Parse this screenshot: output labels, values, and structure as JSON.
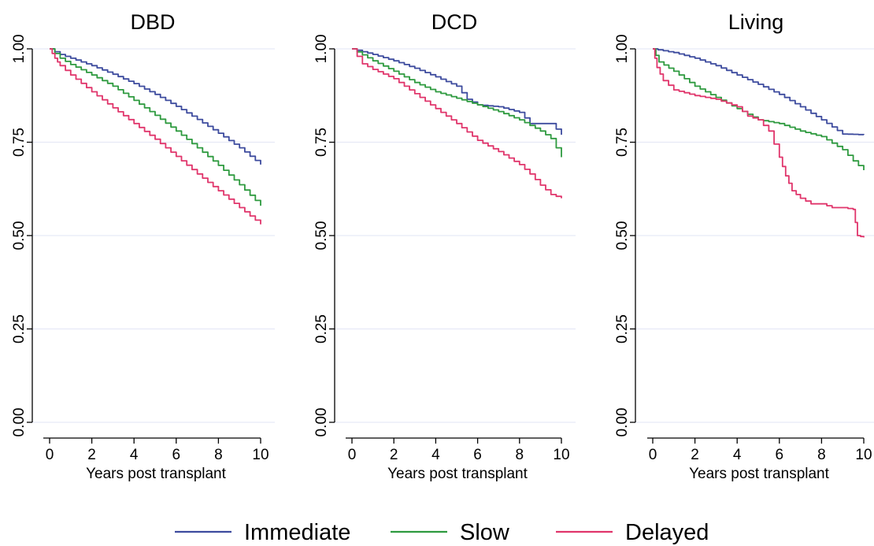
{
  "chart_data": [
    {
      "type": "line",
      "title": "DBD",
      "xlabel": "Years post transplant",
      "ylabel": "",
      "xlim": [
        0,
        10
      ],
      "ylim": [
        0,
        1
      ],
      "xticks": [
        "0",
        "2",
        "4",
        "6",
        "8",
        "10"
      ],
      "yticks": [
        "0.00",
        "0.25",
        "0.50",
        "0.75",
        "1.00"
      ],
      "grid": true,
      "series": [
        {
          "name": "Immediate",
          "color": "#3d4b9e",
          "x": [
            0,
            0.5,
            1,
            2,
            3,
            4,
            5,
            6,
            7,
            8,
            9,
            10
          ],
          "values": [
            1.0,
            0.985,
            0.975,
            0.955,
            0.932,
            0.907,
            0.878,
            0.846,
            0.811,
            0.774,
            0.735,
            0.69
          ]
        },
        {
          "name": "Slow",
          "color": "#2e9a3f",
          "x": [
            0,
            0.5,
            1,
            2,
            3,
            4,
            5,
            6,
            7,
            8,
            9,
            10
          ],
          "values": [
            1.0,
            0.975,
            0.958,
            0.93,
            0.9,
            0.862,
            0.822,
            0.78,
            0.735,
            0.688,
            0.636,
            0.58
          ]
        },
        {
          "name": "Delayed",
          "color": "#e0356b",
          "x": [
            0,
            0.25,
            0.5,
            1,
            2,
            3,
            4,
            5,
            6,
            7,
            8,
            9,
            10
          ],
          "values": [
            1.0,
            0.975,
            0.955,
            0.93,
            0.885,
            0.842,
            0.8,
            0.758,
            0.712,
            0.665,
            0.62,
            0.575,
            0.53
          ]
        }
      ]
    },
    {
      "type": "line",
      "title": "DCD",
      "xlabel": "Years post transplant",
      "ylabel": "",
      "xlim": [
        0,
        10
      ],
      "ylim": [
        0,
        1
      ],
      "xticks": [
        "0",
        "2",
        "4",
        "6",
        "8",
        "10"
      ],
      "yticks": [
        "0.00",
        "0.25",
        "0.50",
        "0.75",
        "1.00"
      ],
      "grid": true,
      "series": [
        {
          "name": "Immediate",
          "color": "#3d4b9e",
          "x": [
            0,
            1,
            2,
            3,
            4,
            5,
            5.5,
            6,
            7,
            8,
            8.5,
            9,
            9.5,
            10
          ],
          "values": [
            1.0,
            0.985,
            0.968,
            0.948,
            0.925,
            0.9,
            0.865,
            0.85,
            0.845,
            0.83,
            0.8,
            0.8,
            0.8,
            0.77
          ]
        },
        {
          "name": "Slow",
          "color": "#2e9a3f",
          "x": [
            0,
            1,
            2,
            3,
            4,
            5,
            6,
            7,
            8,
            9,
            9.5,
            10
          ],
          "values": [
            1.0,
            0.968,
            0.94,
            0.91,
            0.885,
            0.868,
            0.85,
            0.832,
            0.81,
            0.78,
            0.76,
            0.71
          ]
        },
        {
          "name": "Delayed",
          "color": "#e0356b",
          "x": [
            0,
            0.5,
            1,
            2,
            3,
            4,
            5,
            6,
            7,
            8,
            8.5,
            9,
            9.5,
            10
          ],
          "values": [
            1.0,
            0.96,
            0.945,
            0.92,
            0.88,
            0.84,
            0.8,
            0.755,
            0.725,
            0.69,
            0.665,
            0.635,
            0.61,
            0.6
          ]
        }
      ]
    },
    {
      "type": "line",
      "title": "Living",
      "xlabel": "Years post transplant",
      "ylabel": "",
      "xlim": [
        0,
        10
      ],
      "ylim": [
        0,
        1
      ],
      "xticks": [
        "0",
        "2",
        "4",
        "6",
        "8",
        "10"
      ],
      "yticks": [
        "0.00",
        "0.25",
        "0.50",
        "0.75",
        "1.00"
      ],
      "grid": true,
      "series": [
        {
          "name": "Immediate",
          "color": "#3d4b9e",
          "x": [
            0,
            1,
            2,
            3,
            4,
            5,
            6,
            7,
            8,
            9,
            10
          ],
          "values": [
            1.0,
            0.99,
            0.975,
            0.955,
            0.93,
            0.905,
            0.878,
            0.845,
            0.81,
            0.772,
            0.77
          ]
        },
        {
          "name": "Slow",
          "color": "#2e9a3f",
          "x": [
            0,
            0.3,
            1,
            2,
            3,
            4,
            5,
            6,
            7,
            8,
            9,
            9.5,
            10
          ],
          "values": [
            1.0,
            0.965,
            0.94,
            0.9,
            0.87,
            0.84,
            0.81,
            0.8,
            0.78,
            0.765,
            0.73,
            0.7,
            0.675
          ]
        },
        {
          "name": "Delayed",
          "color": "#e0356b",
          "x": [
            0,
            0.2,
            0.5,
            1,
            2,
            3,
            4,
            4.5,
            5,
            5.5,
            6,
            6.3,
            6.6,
            7,
            7.5,
            8,
            8.5,
            9,
            9.5,
            9.7,
            10
          ],
          "values": [
            1.0,
            0.95,
            0.915,
            0.89,
            0.875,
            0.865,
            0.845,
            0.82,
            0.81,
            0.78,
            0.71,
            0.66,
            0.62,
            0.6,
            0.585,
            0.585,
            0.575,
            0.575,
            0.57,
            0.5,
            0.495
          ]
        }
      ]
    }
  ],
  "legend": {
    "position": "bottom",
    "items": [
      {
        "label": "Immediate",
        "color": "#3d4b9e"
      },
      {
        "label": "Slow",
        "color": "#2e9a3f"
      },
      {
        "label": "Delayed",
        "color": "#e0356b"
      }
    ]
  }
}
